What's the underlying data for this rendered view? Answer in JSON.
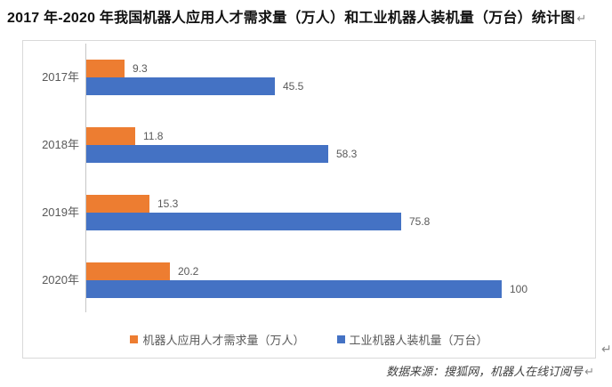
{
  "title": {
    "text": "2017 年-2020 年我国机器人应用人才需求量（万人）和工业机器人装机量（万台）统计图"
  },
  "marks": {
    "return_char": "↵"
  },
  "source": {
    "text": "数据来源：搜狐网，机器人在线订阅号"
  },
  "chart_data": {
    "type": "bar",
    "orientation": "horizontal",
    "title": "2017 年-2020 年我国机器人应用人才需求量（万人）和工业机器人装机量（万台）统计图",
    "categories": [
      "2017年",
      "2018年",
      "2019年",
      "2020年"
    ],
    "series": [
      {
        "name": "机器人应用人才需求量（万人）",
        "color": "#ED7D31",
        "values": [
          9.3,
          11.8,
          15.3,
          20.2
        ]
      },
      {
        "name": "工业机器人装机量（万台）",
        "color": "#4472C4",
        "values": [
          45.5,
          58.3,
          75.8,
          100
        ]
      }
    ],
    "xlim": [
      0,
      100
    ],
    "value_labels": true,
    "grid": false,
    "legend_position": "bottom",
    "source_note": "数据来源：搜狐网，机器人在线订阅号"
  }
}
